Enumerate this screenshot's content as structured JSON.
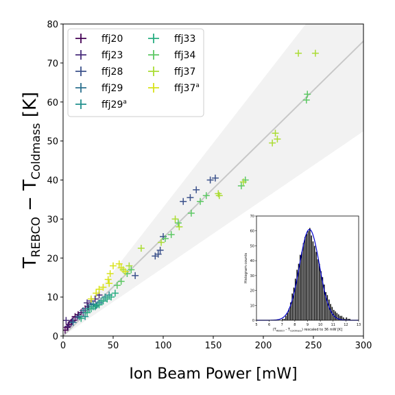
{
  "chart_data": [
    {
      "type": "scatter",
      "title": "",
      "xlabel": "Ion Beam Power [mW]",
      "ylabel_main": "T",
      "ylabel_sub1": "REBCO",
      "ylabel_mid": " − T",
      "ylabel_sub2": "Coldmass",
      "ylabel_end": " [K]",
      "xlim": [
        0,
        300
      ],
      "ylim": [
        0,
        80
      ],
      "xticks": [
        0,
        50,
        100,
        150,
        200,
        250,
        300
      ],
      "yticks": [
        0,
        10,
        20,
        30,
        40,
        50,
        60,
        70,
        80
      ],
      "grid": false,
      "legend_position": "top-left",
      "fit_line": {
        "slope": 0.252,
        "intercept": 0
      },
      "fit_band": {
        "slope_low": 0.175,
        "slope_high": 0.33
      },
      "series": [
        {
          "name": "ffj20",
          "sup": "",
          "color": "#440154",
          "points": [
            [
              2,
              1.5
            ],
            [
              4,
              2.2
            ],
            [
              6,
              3
            ],
            [
              8,
              3.5
            ],
            [
              10,
              4
            ],
            [
              12,
              5
            ],
            [
              15,
              5.5
            ],
            [
              18,
              6
            ],
            [
              22,
              7
            ],
            [
              25,
              7.5
            ]
          ]
        },
        {
          "name": "ffj23",
          "sup": "",
          "color": "#472c7a",
          "points": [
            [
              3,
              4
            ],
            [
              5,
              2.5
            ],
            [
              9,
              3.8
            ],
            [
              14,
              4.8
            ],
            [
              20,
              6
            ],
            [
              24,
              8.5
            ],
            [
              28,
              9
            ],
            [
              32,
              9.5
            ],
            [
              36,
              10.5
            ]
          ]
        },
        {
          "name": "ffj28",
          "sup": "",
          "color": "#3b518b",
          "points": [
            [
              72,
              15.5
            ],
            [
              92,
              20.5
            ],
            [
              95,
              21
            ],
            [
              97,
              22
            ],
            [
              100,
              25.5
            ],
            [
              120,
              34.5
            ],
            [
              127,
              35.5
            ],
            [
              133,
              37.5
            ],
            [
              147,
              40
            ],
            [
              152,
              40.5
            ]
          ]
        },
        {
          "name": "ffj29",
          "sup": "",
          "color": "#2c718e",
          "points": [
            [
              10,
              3.5
            ],
            [
              16,
              5
            ],
            [
              20,
              6.5
            ],
            [
              24,
              7
            ],
            [
              28,
              8
            ],
            [
              30,
              8.2
            ],
            [
              33,
              7.8
            ],
            [
              36,
              8.5
            ],
            [
              40,
              9
            ]
          ]
        },
        {
          "name": "ffj29",
          "sup": "a",
          "color": "#21908d",
          "points": [
            [
              22,
              5
            ],
            [
              26,
              7
            ],
            [
              30,
              7.5
            ],
            [
              34,
              8
            ],
            [
              38,
              9
            ],
            [
              42,
              10
            ],
            [
              46,
              10.5
            ]
          ]
        },
        {
          "name": "ffj33",
          "sup": "",
          "color": "#27ad81",
          "points": [
            [
              18,
              4.5
            ],
            [
              24,
              6
            ],
            [
              28,
              7
            ],
            [
              32,
              7.5
            ],
            [
              36,
              8
            ],
            [
              40,
              9
            ],
            [
              44,
              9.5
            ],
            [
              48,
              10
            ],
            [
              52,
              11
            ]
          ]
        },
        {
          "name": "ffj34",
          "sup": "",
          "color": "#5cc863",
          "points": [
            [
              54,
              13
            ],
            [
              58,
              14
            ],
            [
              64,
              16
            ],
            [
              68,
              17
            ],
            [
              102,
              25
            ],
            [
              108,
              26
            ],
            [
              115,
              29
            ],
            [
              128,
              31.5
            ],
            [
              137,
              34.5
            ],
            [
              143,
              36
            ],
            [
              178,
              38.5
            ],
            [
              182,
              40
            ],
            [
              243,
              60.5
            ],
            [
              244,
              62
            ]
          ]
        },
        {
          "name": "ffj37",
          "sup": "",
          "color": "#aadc32",
          "points": [
            [
              60,
              17
            ],
            [
              66,
              18
            ],
            [
              78,
              22.5
            ],
            [
              98,
              24
            ],
            [
              112,
              30
            ],
            [
              116,
              28
            ],
            [
              155,
              36.5
            ],
            [
              156,
              36
            ],
            [
              180,
              39.5
            ],
            [
              212,
              52
            ],
            [
              214,
              50.5
            ],
            [
              209,
              49.5
            ],
            [
              235,
              72.5
            ],
            [
              252,
              72.5
            ]
          ]
        },
        {
          "name": "ffj37",
          "sup": "a",
          "color": "#d8e219",
          "points": [
            [
              28,
              9.5
            ],
            [
              33,
              11
            ],
            [
              36,
              12
            ],
            [
              40,
              12.5
            ],
            [
              45,
              14.5
            ],
            [
              47,
              16
            ],
            [
              50,
              18
            ],
            [
              56,
              18.5
            ],
            [
              58,
              17.5
            ],
            [
              62,
              16.5
            ],
            [
              46,
              13.5
            ]
          ]
        }
      ]
    },
    {
      "type": "bar",
      "title": "",
      "xlabel_prefix": "(T",
      "xlabel_sub1": "REBCO",
      "xlabel_mid": " - T",
      "xlabel_sub2": "Coldmass",
      "xlabel_suffix": ") rescaled to 36 mW [K]",
      "ylabel": "Histogram counts",
      "xlim": [
        5,
        13
      ],
      "ylim": [
        0,
        70
      ],
      "xticks": [
        5,
        6,
        7,
        8,
        9,
        10,
        11,
        12,
        13
      ],
      "yticks": [
        0,
        10,
        20,
        30,
        40,
        50,
        60,
        70
      ],
      "bins_start": 7.0,
      "bin_width": 0.125,
      "counts": [
        1,
        1,
        3,
        5,
        8,
        12,
        18,
        22,
        28,
        34,
        38,
        44,
        46,
        52,
        56,
        58,
        60,
        62,
        57,
        53,
        50,
        46,
        41,
        38,
        33,
        29,
        24,
        19,
        17,
        14,
        11,
        9,
        7,
        6,
        5,
        4,
        3,
        3,
        2,
        1,
        2,
        1,
        1
      ],
      "fit_curve": {
        "type": "gaussian",
        "mu": 9.15,
        "sigma": 0.78,
        "amplitude": 61,
        "color": "#0000cc"
      }
    }
  ]
}
